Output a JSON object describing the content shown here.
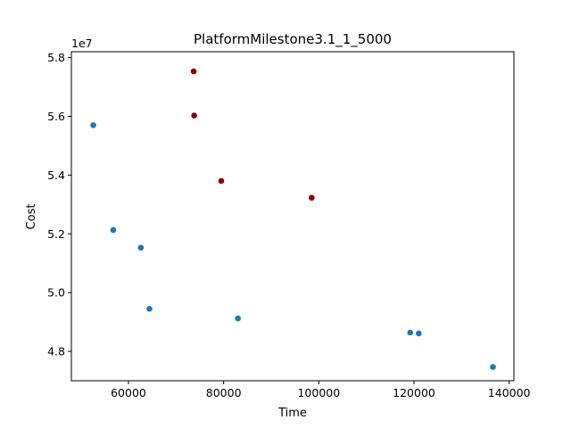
{
  "chart_data": {
    "type": "scatter",
    "title": "PlatformMilestone3.1_1_5000",
    "xlabel": "Time",
    "ylabel": "Cost",
    "y_offset_label": "1e7",
    "xlim": [
      48000,
      141000
    ],
    "ylim": [
      47000000,
      58200000
    ],
    "xticks": [
      60000,
      80000,
      100000,
      120000,
      140000
    ],
    "xtick_labels": [
      "60000",
      "80000",
      "100000",
      "120000",
      "140000"
    ],
    "yticks": [
      48000000,
      50000000,
      52000000,
      54000000,
      56000000,
      58000000
    ],
    "ytick_labels": [
      "4.8",
      "5.0",
      "5.2",
      "5.4",
      "5.6",
      "5.8"
    ],
    "grid": false,
    "series": [
      {
        "color": "#1f77b4",
        "points": [
          {
            "x": 52600,
            "y": 55700000
          },
          {
            "x": 56800,
            "y": 52130000
          },
          {
            "x": 62600,
            "y": 51530000
          },
          {
            "x": 64400,
            "y": 49450000
          },
          {
            "x": 83000,
            "y": 49120000
          },
          {
            "x": 119200,
            "y": 48640000
          },
          {
            "x": 121000,
            "y": 48610000
          },
          {
            "x": 136600,
            "y": 47470000
          }
        ]
      },
      {
        "color": "#8b0000",
        "points": [
          {
            "x": 73700,
            "y": 57530000
          },
          {
            "x": 73800,
            "y": 56030000
          },
          {
            "x": 79500,
            "y": 53800000
          },
          {
            "x": 98500,
            "y": 53230000
          }
        ]
      }
    ]
  }
}
